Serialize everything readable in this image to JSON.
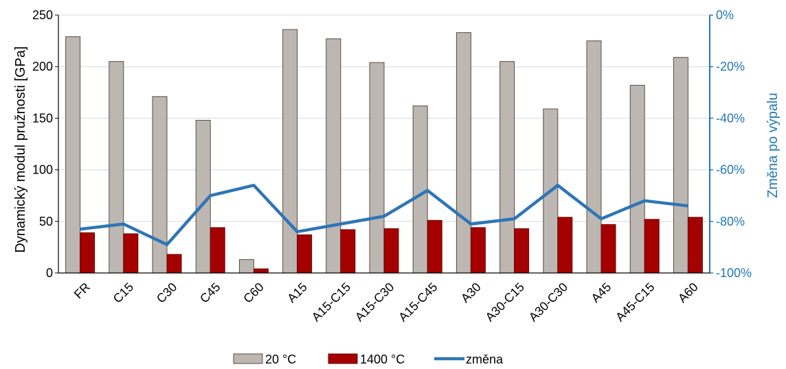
{
  "chart_data": {
    "type": "bar",
    "categories": [
      "FR",
      "C15",
      "C30",
      "C45",
      "C60",
      "A15",
      "A15-C15",
      "A15-C30",
      "A15-C45",
      "A30",
      "A30-C15",
      "A30-C30",
      "A45",
      "A45-C15",
      "A60"
    ],
    "series": [
      {
        "name": "20 °C",
        "type": "bar",
        "axis": "left",
        "color": "#bcb7b3",
        "values": [
          229,
          205,
          171,
          148,
          13,
          236,
          227,
          204,
          162,
          233,
          205,
          159,
          225,
          182,
          209
        ]
      },
      {
        "name": "1400 °C",
        "type": "bar",
        "axis": "left",
        "color": "#a50000",
        "values": [
          39,
          38,
          18,
          44,
          4,
          37,
          42,
          43,
          51,
          44,
          43,
          54,
          47,
          52,
          54
        ]
      },
      {
        "name": "změna",
        "type": "line",
        "axis": "right",
        "color": "#2e75b6",
        "values": [
          -83,
          -81,
          -89,
          -70,
          -66,
          -84,
          -81,
          -78,
          -68,
          -81,
          -79,
          -66,
          -79,
          -72,
          -74
        ]
      }
    ],
    "ylabel": "Dynamický modul pružnosti [GPa]",
    "ylabel_right": "Změna po výpalu",
    "ylim": [
      0,
      250
    ],
    "yticks": [
      "0",
      "50",
      "100",
      "150",
      "200",
      "250"
    ],
    "ylim_right": [
      -100,
      0
    ],
    "yticks_right": [
      "-100%",
      "-80%",
      "-60%",
      "-40%",
      "-20%",
      "0%"
    ],
    "grid": true,
    "legend_position": "bottom"
  }
}
